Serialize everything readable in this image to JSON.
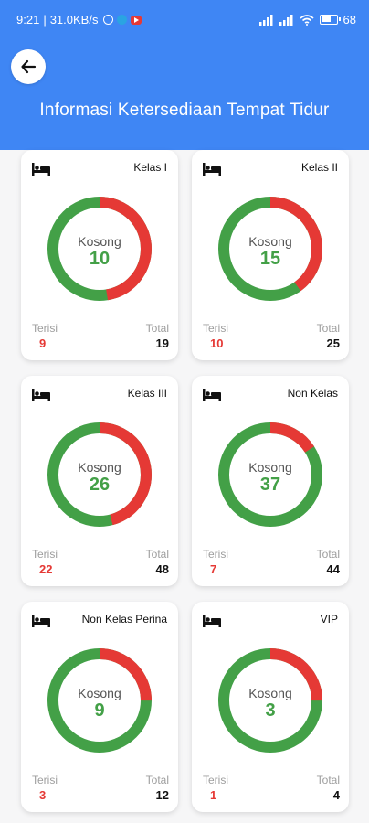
{
  "status_bar": {
    "time": "9:21",
    "speed": "31.0KB/s",
    "battery": "68"
  },
  "header": {
    "title": "Informasi Ketersediaan Tempat Tidur",
    "back_icon": "arrow-left-icon"
  },
  "labels": {
    "kosong": "Kosong",
    "terisi": "Terisi",
    "total": "Total"
  },
  "colors": {
    "header": "#3f86f4",
    "available": "#43a047",
    "occupied": "#e53935"
  },
  "cards": [
    {
      "title": "Kelas I",
      "kosong": 10,
      "terisi": 9,
      "total": 19
    },
    {
      "title": "Kelas II",
      "kosong": 15,
      "terisi": 10,
      "total": 25
    },
    {
      "title": "Kelas III",
      "kosong": 26,
      "terisi": 22,
      "total": 48
    },
    {
      "title": "Non Kelas",
      "kosong": 37,
      "terisi": 7,
      "total": 44
    },
    {
      "title": "Non Kelas Perina",
      "kosong": 9,
      "terisi": 3,
      "total": 12
    },
    {
      "title": "VIP",
      "kosong": 3,
      "terisi": 1,
      "total": 4
    }
  ]
}
